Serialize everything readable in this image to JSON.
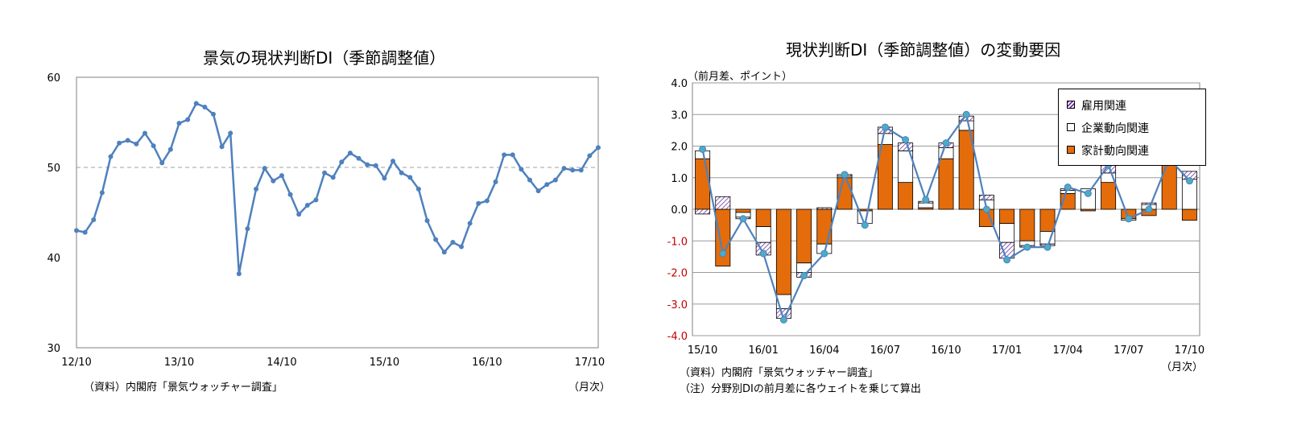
{
  "left": {
    "title": "景気の現状判断DI（季節調整値）",
    "source": "（資料）内閣府「景気ウォッチャー調査」",
    "unit": "（月次）"
  },
  "right": {
    "title": "現状判断DI（季節調整値）の変動要因",
    "yunit": "（前月差、ポイント）",
    "source": "（資料）内閣府「景気ウォッチャー調査」",
    "note": "（注）分野別DIの前月差に各ウェイトを乗じて算出",
    "unit": "（月次）"
  },
  "colors": {
    "line": "#4f81bd",
    "household": "#e46c0a",
    "corporate": "#ffffff",
    "employment_hatch": "#7030a0",
    "marker": "#4bacc6",
    "negative_tick": "#c00000"
  },
  "chart_data": [
    {
      "type": "line",
      "title": "景気の現状判断DI（季節調整値）",
      "x_tick_labels": [
        "12/10",
        "13/10",
        "14/10",
        "15/10",
        "16/10",
        "17/10"
      ],
      "y_tick_labels": [
        "30",
        "40",
        "50",
        "60"
      ],
      "ylim": [
        30,
        60
      ],
      "reference_line": 50,
      "grid": false,
      "series": [
        {
          "values": [
            43.0,
            42.8,
            44.2,
            47.2,
            51.2,
            52.7,
            53.0,
            52.6,
            53.8,
            52.4,
            50.5,
            52.0,
            54.9,
            55.3,
            57.1,
            56.7,
            55.9,
            52.3,
            53.8,
            38.2,
            43.2,
            47.6,
            49.9,
            48.5,
            49.1,
            47.0,
            44.8,
            45.8,
            46.4,
            49.4,
            48.9,
            50.6,
            51.6,
            51.0,
            50.3,
            50.2,
            48.8,
            50.7,
            49.4,
            48.9,
            47.6,
            44.1,
            42.0,
            40.6,
            41.7,
            41.2,
            43.8,
            46.0,
            46.3,
            48.4,
            51.4,
            51.4,
            49.8,
            48.6,
            47.4,
            48.1,
            48.6,
            49.9,
            49.7,
            49.7,
            51.3,
            52.2
          ]
        }
      ]
    },
    {
      "type": "bar",
      "title": "現状判断DI（季節調整値）の変動要因",
      "ylabel": "（前月差、ポイント）",
      "x_tick_labels": [
        "15/10",
        "16/01",
        "16/04",
        "16/07",
        "16/10",
        "17/01",
        "17/04",
        "17/07",
        "17/10"
      ],
      "y_tick_labels": [
        "4.0",
        "3.0",
        "2.0",
        "1.0",
        "0.0",
        "-1.0",
        "-2.0",
        "-3.0",
        "-4.0"
      ],
      "ylim": [
        -4.0,
        4.0
      ],
      "grid": true,
      "legend_position": "top-right",
      "stacked": true,
      "series": [
        {
          "name": "家計動向関連",
          "values": [
            1.6,
            -1.8,
            -0.1,
            -0.55,
            -2.7,
            -1.7,
            -1.1,
            1.0,
            -0.05,
            2.05,
            0.85,
            0.05,
            1.6,
            2.5,
            -0.55,
            -0.45,
            -1.0,
            -0.7,
            0.5,
            -0.05,
            0.85,
            -0.3,
            -0.2,
            1.5,
            -0.35
          ]
        },
        {
          "name": "企業動向関連",
          "values": [
            0.25,
            0.0,
            -0.15,
            -0.5,
            -0.45,
            -0.3,
            -0.3,
            0.05,
            -0.4,
            0.35,
            1.0,
            0.15,
            0.35,
            0.3,
            0.3,
            -0.6,
            -0.15,
            -0.4,
            0.1,
            0.65,
            0.3,
            -0.05,
            0.15,
            0.05,
            0.95
          ]
        },
        {
          "name": "雇用関連",
          "values": [
            -0.15,
            0.4,
            -0.05,
            -0.4,
            -0.3,
            -0.15,
            0.05,
            0.05,
            0.0,
            0.2,
            0.25,
            0.05,
            0.15,
            0.15,
            0.15,
            -0.5,
            -0.05,
            -0.05,
            0.05,
            0.0,
            0.25,
            0.0,
            0.05,
            0.05,
            0.25
          ]
        },
        {
          "name": "",
          "type": "line",
          "values": [
            1.9,
            -1.4,
            -0.3,
            -1.4,
            -3.5,
            -2.1,
            -1.4,
            1.1,
            -0.5,
            2.6,
            2.2,
            0.3,
            2.1,
            3.0,
            0.0,
            -1.6,
            -1.2,
            -1.2,
            0.7,
            0.5,
            1.4,
            -0.3,
            0.0,
            1.6,
            0.9
          ]
        }
      ]
    }
  ]
}
